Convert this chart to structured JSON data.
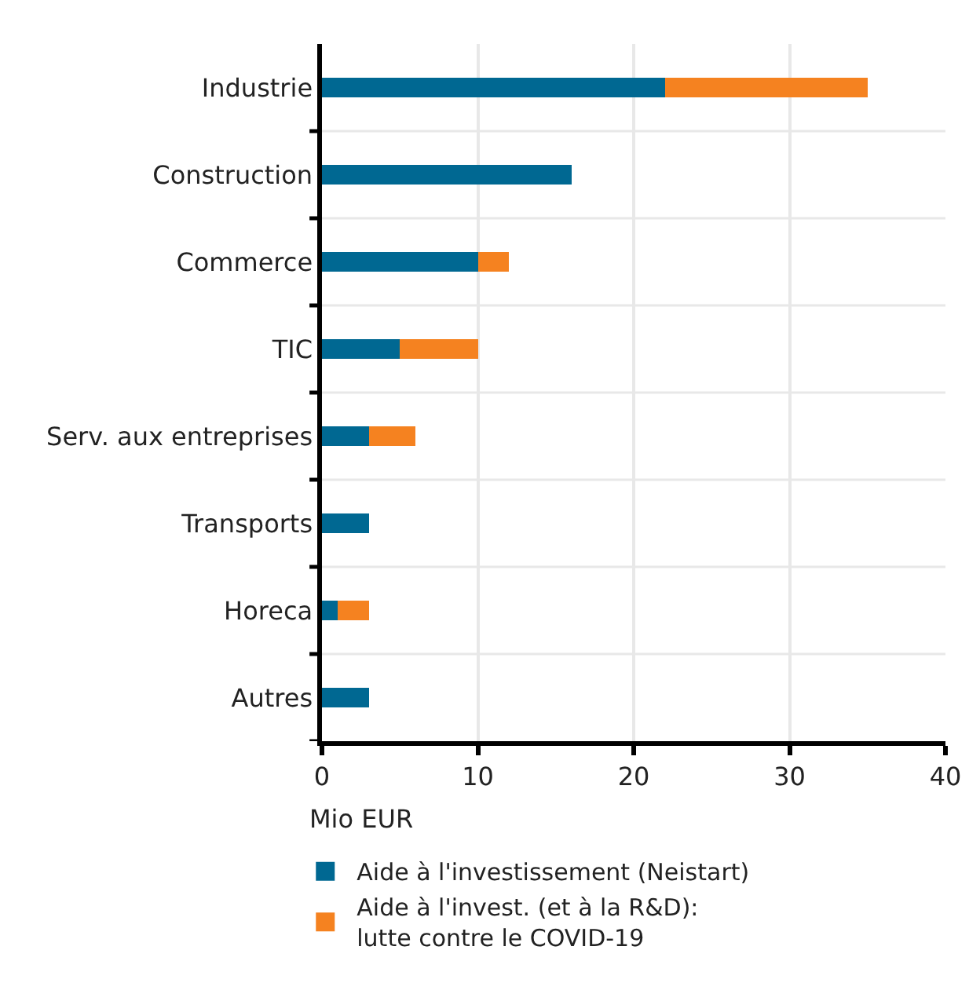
{
  "chart_data": {
    "type": "bar",
    "orientation": "horizontal",
    "stacked": true,
    "categories": [
      "Industrie",
      "Construction",
      "Commerce",
      "TIC",
      "Serv. aux entreprises",
      "Transports",
      "Horeca",
      "Autres"
    ],
    "series": [
      {
        "name": "Aide à l'investissement (Neistart)",
        "color": "#006892",
        "values": [
          22,
          16,
          10,
          5,
          3,
          3,
          1,
          3
        ]
      },
      {
        "name": "Aide à l'invest. (et à la R&D):\nlutte contre le COVID-19",
        "color": "#f58220",
        "values": [
          13,
          null,
          2,
          5,
          3,
          null,
          2,
          null
        ]
      }
    ],
    "xlim": [
      0,
      40
    ],
    "xticks": [
      0,
      10,
      20,
      30,
      40
    ],
    "xlabel": "Mio EUR",
    "grid": true,
    "legend": "bottom"
  }
}
